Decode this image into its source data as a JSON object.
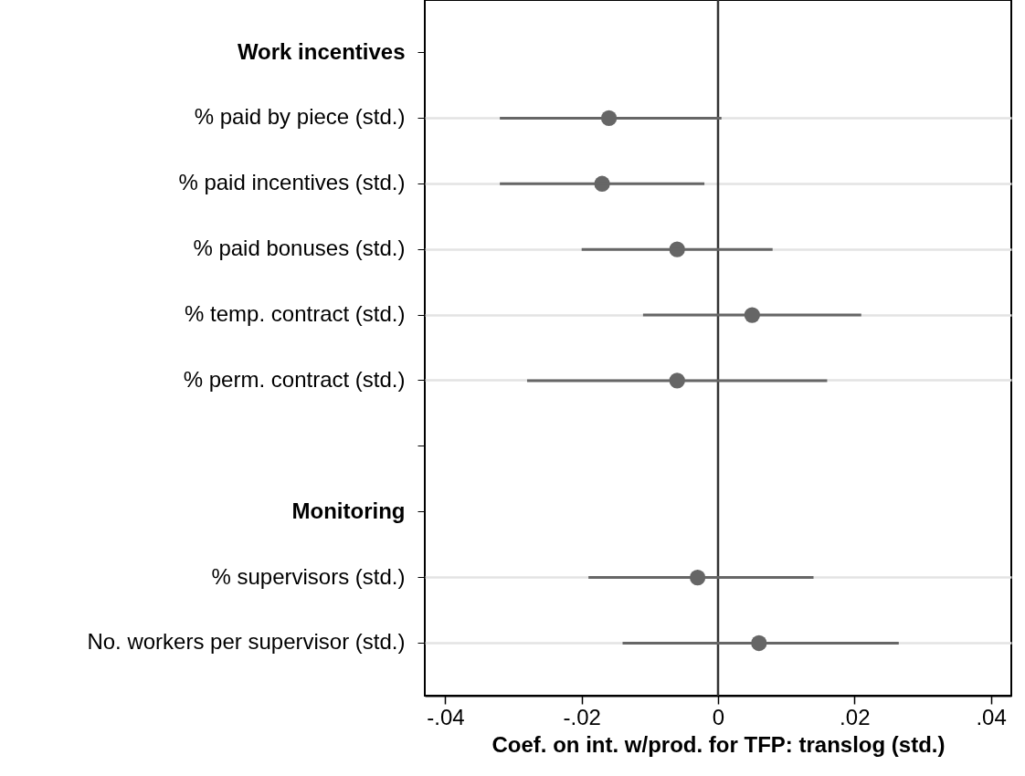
{
  "chart_data": {
    "type": "scatter",
    "orientation": "horizontal",
    "xlabel": "Coef. on int. w/prod. for TFP: translog (std.)",
    "categories": [
      "Work incentives",
      "% paid by piece (std.)",
      "% paid incentives (std.)",
      "% paid bonuses (std.)",
      "% temp. contract (std.)",
      "% perm. contract (std.)",
      null,
      "Monitoring",
      "% supervisors (std.)",
      "No. workers per supervisor (std.)"
    ],
    "values": [
      null,
      -0.016,
      -0.017,
      -0.006,
      0.005,
      -0.006,
      null,
      null,
      -0.003,
      0.006
    ],
    "errors": [
      null,
      [
        -0.032,
        0.0005
      ],
      [
        -0.032,
        -0.002
      ],
      [
        -0.02,
        0.008
      ],
      [
        -0.011,
        0.021
      ],
      [
        -0.028,
        0.016
      ],
      null,
      null,
      [
        -0.019,
        0.014
      ],
      [
        -0.014,
        0.0265
      ]
    ],
    "color": "#666666",
    "marker": "circle",
    "grid": "y",
    "xlim": [
      -0.043,
      0.043
    ],
    "xticks": [
      {
        "value": -0.04,
        "label": "-.04"
      },
      {
        "value": -0.02,
        "label": "-.02"
      },
      0,
      {
        "value": 0.02,
        "label": ".02"
      },
      {
        "value": 0.04,
        "label": ".04"
      }
    ],
    "ref_lines": [
      {
        "axis": "x",
        "value": 0,
        "color": "#333333"
      }
    ]
  }
}
